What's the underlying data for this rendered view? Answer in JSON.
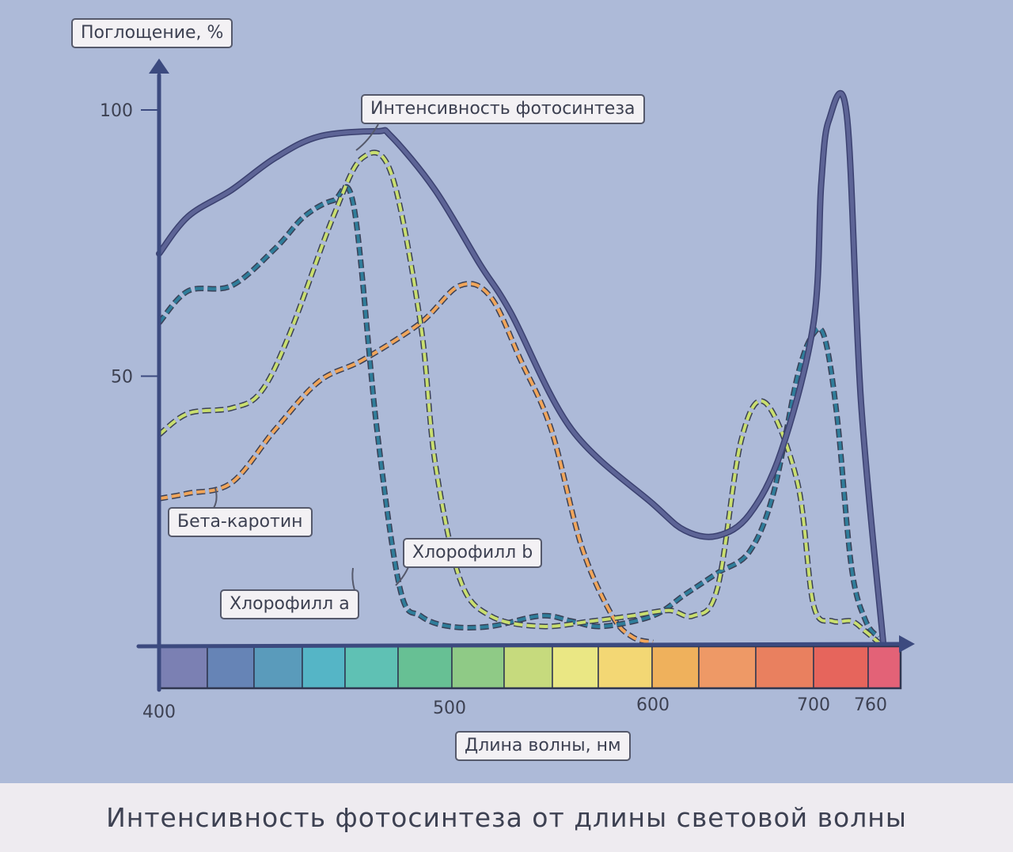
{
  "chart_data": {
    "type": "line",
    "title": "Интенсивность фотосинтеза от длины световой волны",
    "ylabel": "Поглощение, %",
    "xlabel": "Длина волны, нм",
    "x_ticks": [
      "400",
      "500",
      "600",
      "700",
      "760"
    ],
    "y_ticks": [
      "50",
      "100"
    ],
    "xlim": [
      400,
      770
    ],
    "ylim": [
      0,
      105
    ],
    "series": [
      {
        "name": "Интенсивность фотосинтеза",
        "color": "#5d6496",
        "style": "solid",
        "x": [
          400,
          410,
          425,
          440,
          455,
          475,
          480,
          495,
          515,
          530,
          560,
          600,
          620,
          640,
          660,
          680,
          700,
          708,
          716,
          735,
          750,
          768
        ],
        "y": [
          73,
          80,
          85,
          91,
          95,
          96,
          95,
          85,
          71,
          62,
          40,
          26,
          21,
          20,
          24,
          36,
          60,
          86,
          98,
          99,
          45,
          0
        ]
      },
      {
        "name": "Хлорофилл a",
        "color": "#2f7d9a",
        "style": "dashed",
        "x": [
          400,
          410,
          425,
          440,
          450,
          460,
          467,
          475,
          483,
          490,
          500,
          520,
          545,
          560,
          575,
          600,
          620,
          640,
          660,
          675,
          690,
          700,
          712,
          725,
          740,
          755,
          765
        ],
        "y": [
          60,
          66,
          67,
          74,
          80,
          83,
          82,
          40,
          10,
          5,
          3,
          3,
          5,
          4,
          3,
          5,
          9,
          13,
          17,
          28,
          50,
          58,
          57,
          42,
          14,
          4,
          1
        ]
      },
      {
        "name": "Хлорофилл b",
        "color": "#c9de6f",
        "style": "dashed",
        "x": [
          400,
          410,
          425,
          435,
          445,
          460,
          470,
          480,
          490,
          495,
          505,
          520,
          545,
          570,
          590,
          610,
          625,
          640,
          655,
          670,
          690,
          700,
          720,
          740,
          755,
          765
        ],
        "y": [
          39,
          43,
          44,
          47,
          58,
          80,
          91,
          88,
          60,
          34,
          12,
          5,
          3,
          4,
          5,
          6,
          5,
          10,
          38,
          45,
          30,
          7,
          4,
          4,
          2,
          0
        ]
      },
      {
        "name": "Бета-каротин",
        "color": "#f0a55a",
        "style": "dashed",
        "x": [
          400,
          410,
          425,
          440,
          455,
          470,
          490,
          505,
          520,
          535,
          550,
          565,
          580,
          590,
          600
        ],
        "y": [
          27,
          28,
          30,
          40,
          49,
          53,
          60,
          67,
          65,
          53,
          40,
          18,
          5,
          1,
          0
        ]
      }
    ],
    "annotations": [
      "Интенсивность фотосинтеза",
      "Хлорофилл b",
      "Хлорофилл a",
      "Бета-каротин"
    ],
    "spectrum_colors": [
      "#7b80b3",
      "#6684b6",
      "#5a9bbb",
      "#55b5c6",
      "#5fc1b4",
      "#67c094",
      "#8fca86",
      "#c6da7d",
      "#eae784",
      "#f3d774",
      "#efb15c",
      "#ee9966",
      "#e9805f",
      "#e6655c",
      "#e36277"
    ],
    "grid": false,
    "legend": "none"
  }
}
